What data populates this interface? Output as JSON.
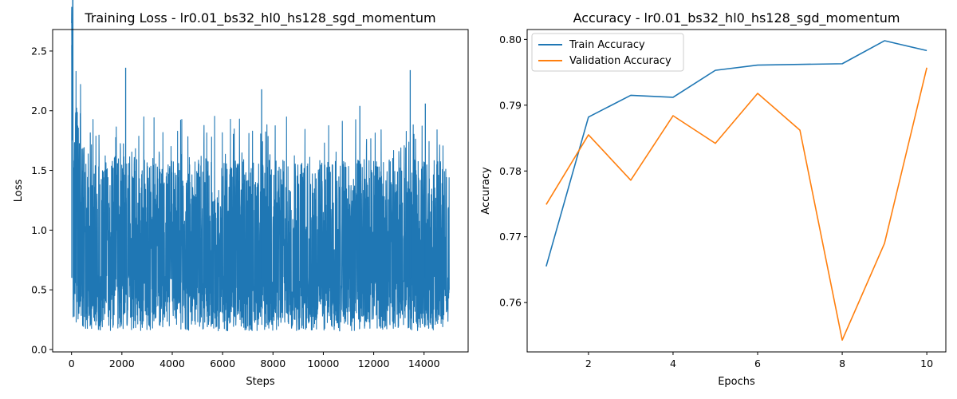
{
  "chart_data": [
    {
      "type": "line",
      "title": "Training Loss - lr0.01_bs32_hl0_hs128_sgd_momentum",
      "xlabel": "Steps",
      "ylabel": "Loss",
      "xlim": [
        -750,
        15750
      ],
      "ylim": [
        -0.02,
        2.68
      ],
      "xticks": [
        0,
        2000,
        4000,
        6000,
        8000,
        10000,
        12000,
        14000
      ],
      "yticks": [
        0.0,
        0.5,
        1.0,
        1.5,
        2.0,
        2.5
      ],
      "ytick_labels": [
        "0.0",
        "0.5",
        "1.0",
        "1.5",
        "2.0",
        "2.5"
      ],
      "grid": false,
      "color": "#1f77b4",
      "series": [
        {
          "x": [
            0,
            500,
            1000,
            1500,
            2000,
            2500,
            3000,
            3500,
            4000,
            4500,
            5000,
            5500,
            6000,
            6500,
            7000,
            7500,
            8000,
            8500,
            9000,
            9500,
            10000,
            10500,
            11000,
            11500,
            12000,
            12500,
            13000,
            13500,
            14000,
            14500,
            15000
          ],
          "values": [
            2.55,
            0.95,
            0.78,
            0.75,
            0.74,
            0.72,
            0.71,
            0.7,
            0.7,
            0.69,
            0.69,
            0.69,
            0.68,
            0.68,
            0.68,
            0.68,
            0.67,
            0.67,
            0.67,
            0.67,
            0.67,
            0.67,
            0.66,
            0.66,
            0.66,
            0.66,
            0.66,
            0.66,
            0.66,
            0.66,
            0.66
          ]
        }
      ]
    },
    {
      "type": "line",
      "title": "Accuracy - lr0.01_bs32_hl0_hs128_sgd_momentum",
      "xlabel": "Epochs",
      "ylabel": "Accuracy",
      "xlim": [
        0.55,
        10.45
      ],
      "ylim": [
        0.7525,
        0.8015
      ],
      "xticks": [
        2,
        4,
        6,
        8,
        10
      ],
      "yticks": [
        0.76,
        0.77,
        0.78,
        0.79,
        0.8
      ],
      "ytick_labels": [
        "0.76",
        "0.77",
        "0.78",
        "0.79",
        "0.80"
      ],
      "grid": false,
      "legend": "top-left",
      "x": [
        1,
        2,
        3,
        4,
        5,
        6,
        7,
        8,
        9,
        10
      ],
      "series": [
        {
          "name": "Train Accuracy",
          "color": "#1f77b4",
          "values": [
            0.7655,
            0.7882,
            0.7915,
            0.7912,
            0.7953,
            0.7961,
            0.7962,
            0.7963,
            0.7998,
            0.7983
          ]
        },
        {
          "name": "Validation Accuracy",
          "color": "#ff7f0e",
          "values": [
            0.7749,
            0.7855,
            0.7786,
            0.7884,
            0.7842,
            0.7918,
            0.7862,
            0.7543,
            0.769,
            0.7957
          ]
        }
      ]
    }
  ]
}
